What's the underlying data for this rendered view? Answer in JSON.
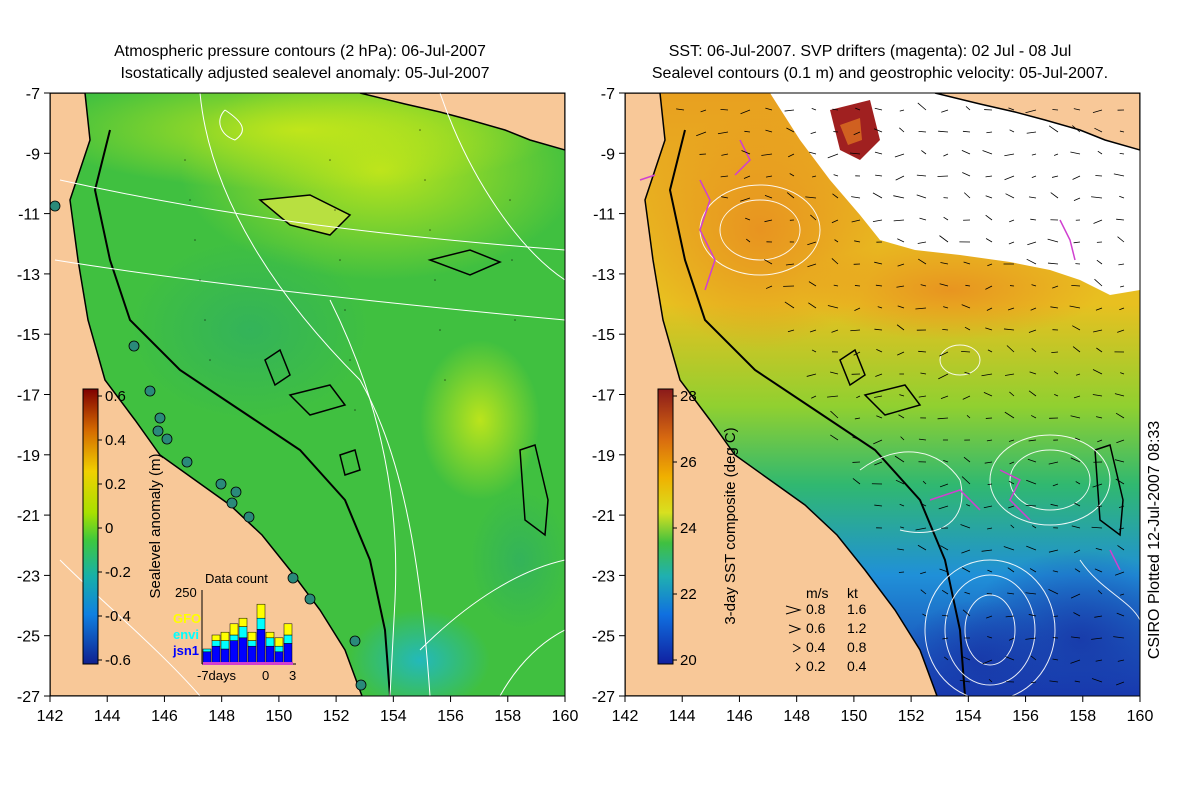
{
  "left_panel": {
    "title_line1": "Atmospheric pressure contours (2 hPa): 06-Jul-2007",
    "title_line2": "Isostatically adjusted sealevel anomaly: 05-Jul-2007",
    "x_ticks": [
      "142",
      "144",
      "146",
      "148",
      "150",
      "152",
      "154",
      "156",
      "158",
      "160"
    ],
    "y_ticks": [
      "-7",
      "-9",
      "-11",
      "-13",
      "-15",
      "-17",
      "-19",
      "-21",
      "-23",
      "-25",
      "-27"
    ],
    "colorbar": {
      "label": "Sealevel anomaly (m)",
      "ticks": [
        "0.6",
        "0.4",
        "0.2",
        "0",
        "-0.2",
        "-0.4",
        "-0.6"
      ],
      "colors": [
        "#7f0000",
        "#d46a00",
        "#f0d000",
        "#a8e000",
        "#3ec83e",
        "#18b0a8",
        "#1080e0",
        "#102090"
      ]
    },
    "data_count": {
      "title": "Data count",
      "max_label": "250",
      "legend": [
        {
          "name": "GFO",
          "color": "#ffff00"
        },
        {
          "name": "envi",
          "color": "#00ffff"
        },
        {
          "name": "jsn1",
          "color": "#0000ff"
        }
      ],
      "x_labels": [
        "-7days",
        "0",
        "3"
      ],
      "bars": [
        {
          "jsn1": 40,
          "envi": 10,
          "gfo": 0
        },
        {
          "jsn1": 60,
          "envi": 20,
          "gfo": 20
        },
        {
          "jsn1": 50,
          "envi": 30,
          "gfo": 30
        },
        {
          "jsn1": 80,
          "envi": 20,
          "gfo": 40
        },
        {
          "jsn1": 90,
          "envi": 40,
          "gfo": 30
        },
        {
          "jsn1": 60,
          "envi": 20,
          "gfo": 30
        },
        {
          "jsn1": 120,
          "envi": 40,
          "gfo": 50
        },
        {
          "jsn1": 60,
          "envi": 30,
          "gfo": 20
        },
        {
          "jsn1": 40,
          "envi": 20,
          "gfo": 30
        },
        {
          "jsn1": 70,
          "envi": 30,
          "gfo": 40
        }
      ]
    }
  },
  "right_panel": {
    "title_line1": "SST: 06-Jul-2007. SVP drifters (magenta): 02 Jul - 08 Jul",
    "title_line2": "Sealevel contours (0.1 m) and geostrophic velocity: 05-Jul-2007.",
    "x_ticks": [
      "142",
      "144",
      "146",
      "148",
      "150",
      "152",
      "154",
      "156",
      "158",
      "160"
    ],
    "y_ticks": [
      "-7",
      "-9",
      "-11",
      "-13",
      "-15",
      "-17",
      "-19",
      "-21",
      "-23",
      "-25",
      "-27"
    ],
    "colorbar": {
      "label": "3-day SST composite (deg C)",
      "ticks": [
        "28",
        "26",
        "24",
        "22",
        "20"
      ],
      "colors": [
        "#8b1a1a",
        "#d86a10",
        "#f0b000",
        "#d8e020",
        "#40c040",
        "#20b0b0",
        "#1070e0",
        "#1020a0"
      ]
    },
    "velocity_legend": {
      "header_ms": "m/s",
      "header_kt": "kt",
      "rows": [
        {
          "ms": "0.8",
          "kt": "1.6"
        },
        {
          "ms": "0.6",
          "kt": "1.2"
        },
        {
          "ms": "0.4",
          "kt": "0.8"
        },
        {
          "ms": "0.2",
          "kt": "0.4"
        }
      ]
    },
    "credit": "CSIRO Plotted 12-Jul-2007 08:33"
  },
  "colors": {
    "land": "#f8c898",
    "coast": "#000000",
    "contour": "#ffffff",
    "drifter": "#d040d0",
    "station": "#2a8a7a"
  }
}
